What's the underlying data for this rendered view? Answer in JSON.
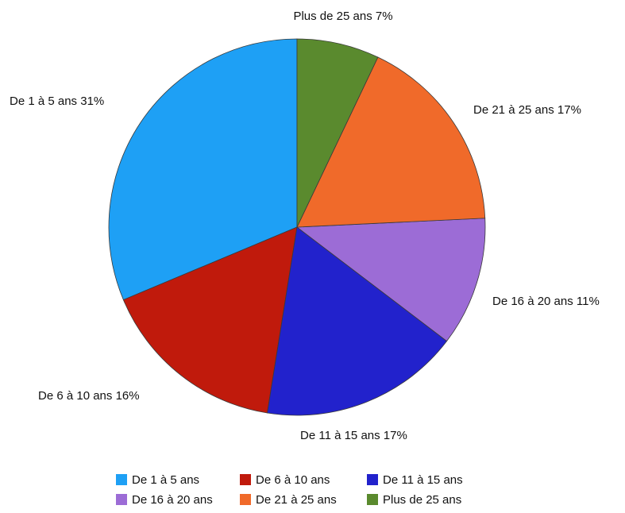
{
  "chart_data": {
    "type": "pie",
    "title": "",
    "slices": [
      {
        "label": "De 1 à 5 ans",
        "value": 31,
        "color": "#1ea0f5",
        "data_label": "De 1 à 5 ans 31%"
      },
      {
        "label": "De 6 à 10 ans",
        "value": 16,
        "color": "#c01a0c",
        "data_label": "De 6 à 10 ans 16%"
      },
      {
        "label": "De 11 à 15 ans",
        "value": 17,
        "color": "#2222cc",
        "data_label": "De 11 à 15 ans 17%"
      },
      {
        "label": "De 16 à 20 ans",
        "value": 11,
        "color": "#9c6cd6",
        "data_label": "De 16 à 20 ans 11%"
      },
      {
        "label": "De 21 à 25 ans",
        "value": 17,
        "color": "#f06a2a",
        "data_label": "De 21 à 25 ans 17%"
      },
      {
        "label": "Plus de 25 ans",
        "value": 7,
        "color": "#5a8a2e",
        "data_label": "Plus de 25 ans 7%"
      }
    ],
    "legend_position": "bottom"
  }
}
